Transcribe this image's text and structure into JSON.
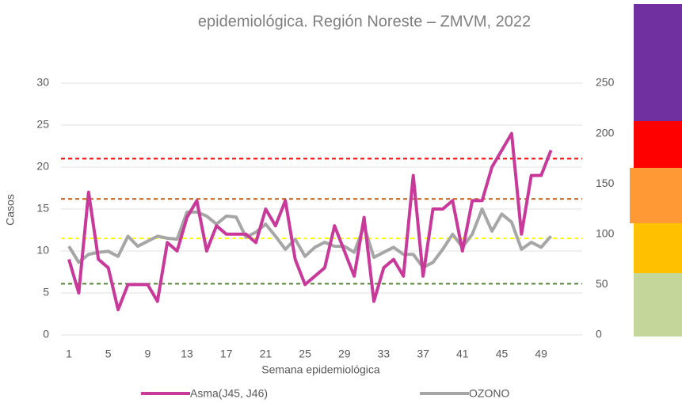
{
  "chart_data": {
    "type": "line",
    "title": "epidemiológica. Región Noreste – ZMVM, 2022",
    "x_label": "Semana epidemiológica",
    "y_label": "Casos",
    "categories": [
      1,
      null,
      null,
      null,
      5,
      null,
      null,
      null,
      9,
      null,
      null,
      null,
      13,
      null,
      null,
      null,
      17,
      null,
      null,
      null,
      21,
      null,
      null,
      null,
      25,
      null,
      null,
      null,
      29,
      null,
      null,
      null,
      33,
      null,
      null,
      null,
      37,
      null,
      null,
      null,
      41,
      null,
      null,
      null,
      45,
      null,
      null,
      null,
      49,
      null,
      null,
      null
    ],
    "series": [
      {
        "name": "Asma(J45, J46)",
        "color": "#c8399a",
        "values": [
          9,
          5,
          17,
          9,
          8,
          3,
          6,
          6,
          6,
          4,
          11,
          10,
          14,
          16,
          10,
          13,
          12,
          12,
          12,
          11,
          15,
          13,
          16,
          9,
          6,
          7,
          8,
          13,
          10,
          7,
          14,
          4,
          8,
          9,
          7,
          19,
          7,
          15,
          15,
          16,
          10,
          16,
          16,
          20,
          22,
          24,
          12,
          19,
          19,
          22,
          null,
          null
        ]
      },
      {
        "name": "OZONO",
        "color": "#a6a6a6",
        "axis": "y2",
        "values": [
          88,
          72,
          80,
          82,
          83,
          78,
          98,
          88,
          93,
          98,
          96,
          95,
          122,
          122,
          118,
          110,
          118,
          117,
          97,
          102,
          110,
          98,
          85,
          95,
          78,
          87,
          92,
          88,
          88,
          82,
          108,
          77,
          82,
          87,
          80,
          80,
          67,
          72,
          85,
          100,
          87,
          100,
          125,
          103,
          120,
          112,
          85,
          92,
          87,
          98,
          null,
          null
        ]
      }
    ],
    "reference_lines": [
      {
        "value": 21,
        "color": "#ff0000"
      },
      {
        "value": 16.2,
        "color": "#c55a11"
      },
      {
        "value": 11.5,
        "color": "#ffff00"
      },
      {
        "value": 6.1,
        "color": "#548235"
      }
    ],
    "ylim": [
      0,
      30
    ],
    "yticks": [
      0,
      5,
      10,
      15,
      20,
      25,
      30
    ],
    "y2lim": [
      0,
      250
    ],
    "y2ticks": [
      0,
      50,
      100,
      150,
      200,
      250
    ],
    "grid": true
  }
}
